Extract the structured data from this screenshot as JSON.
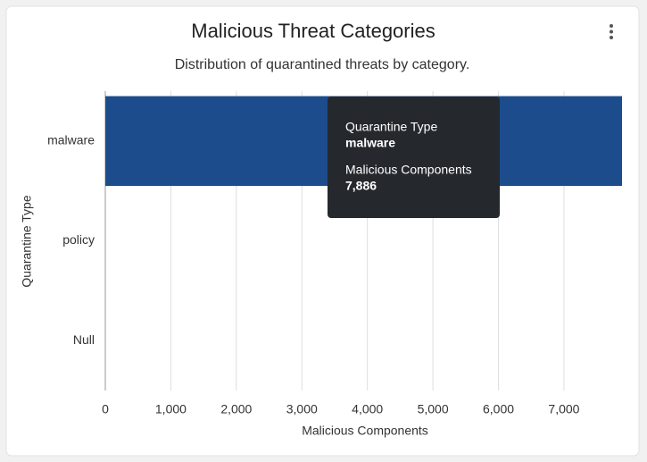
{
  "chart_data": {
    "type": "bar",
    "orientation": "horizontal",
    "title": "Malicious Threat Categories",
    "subtitle": "Distribution of quarantined threats by category.",
    "x_label": "Malicious Components",
    "y_label": "Quarantine Type",
    "categories": [
      "malware",
      "policy",
      "Null"
    ],
    "values": [
      7886,
      0,
      0
    ],
    "value_labels": [
      "7,886",
      null,
      null
    ],
    "color": "#1c4c8c",
    "xlim": [
      0,
      7886
    ],
    "xticks": [
      0,
      {
        "value": 1000,
        "label": "1,000"
      },
      {
        "value": 2000,
        "label": "2,000"
      },
      {
        "value": 3000,
        "label": "3,000"
      },
      {
        "value": 4000,
        "label": "4,000"
      },
      {
        "value": 5000,
        "label": "5,000"
      },
      {
        "value": 6000,
        "label": "6,000"
      },
      {
        "value": 7000,
        "label": "7,000"
      }
    ],
    "grid": true
  }
}
